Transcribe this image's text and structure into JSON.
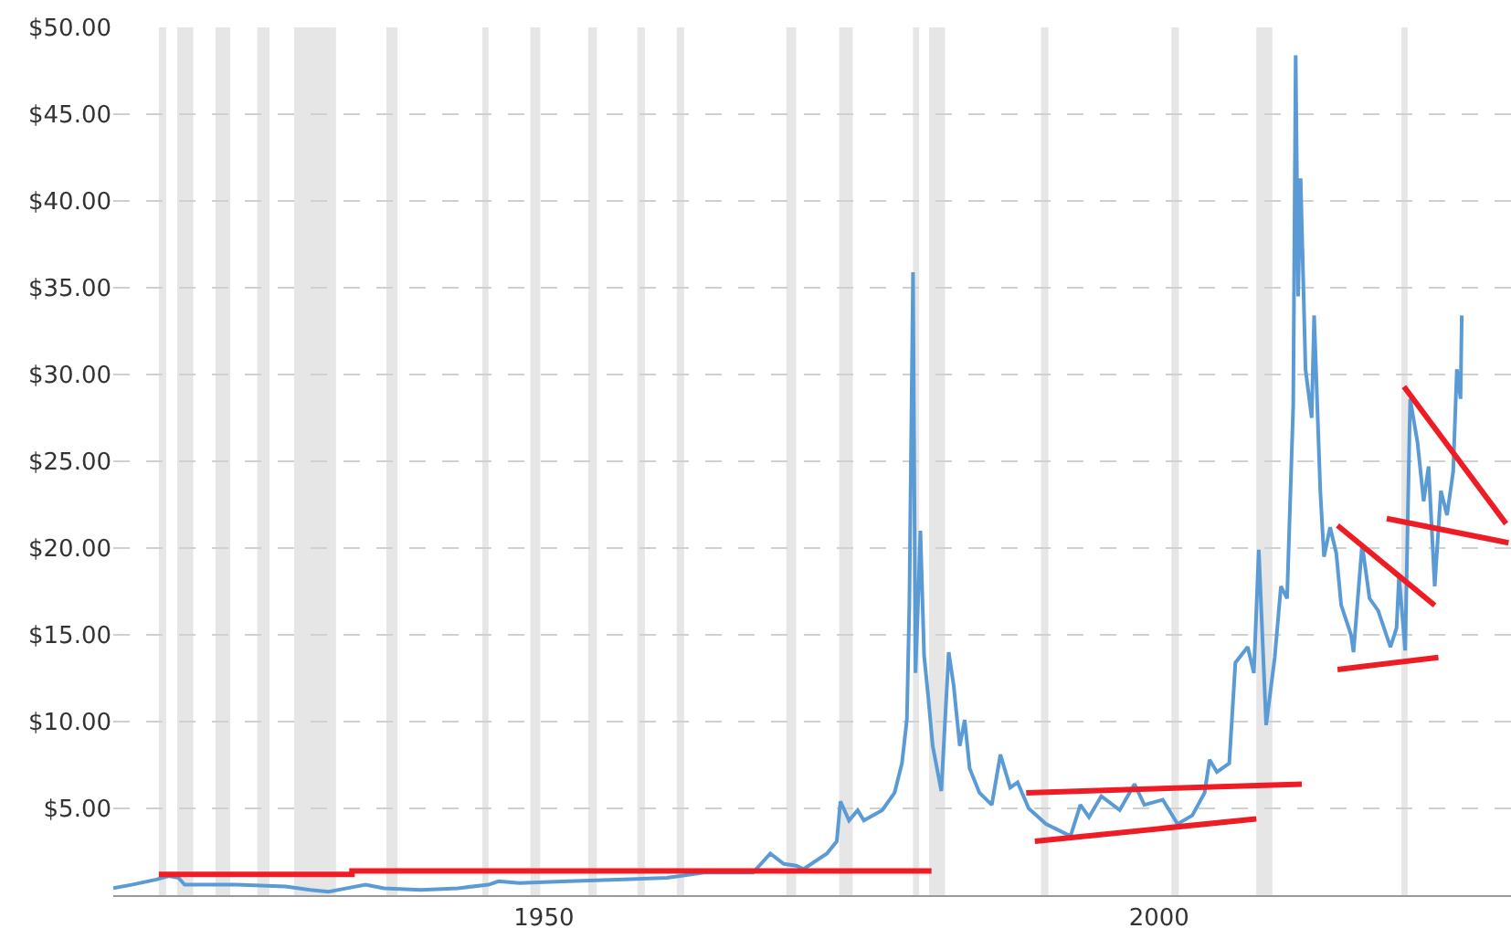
{
  "chart_data": {
    "type": "line",
    "xlim": [
      1915.0,
      2028.6
    ],
    "ylim": [
      0,
      50
    ],
    "xticks": [
      1950,
      2000
    ],
    "yticks": [
      {
        "value": 5,
        "label": "$5.00"
      },
      {
        "value": 10,
        "label": "$10.00"
      },
      {
        "value": 15,
        "label": "$15.00"
      },
      {
        "value": 20,
        "label": "$20.00"
      },
      {
        "value": 25,
        "label": "$25.00"
      },
      {
        "value": 30,
        "label": "$30.00"
      },
      {
        "value": 35,
        "label": "$35.00"
      },
      {
        "value": 40,
        "label": "$40.00"
      },
      {
        "value": 45,
        "label": "$45.00"
      },
      {
        "value": 50,
        "label": "$50.00"
      }
    ],
    "grid": "y",
    "series": [
      {
        "color": "#5b9bd5",
        "x": [
          1915.0,
          1916.5,
          1918.5,
          1919.5,
          1920.3,
          1920.8,
          1925.0,
          1929.0,
          1931.0,
          1932.5,
          1934.0,
          1935.5,
          1937.0,
          1940.0,
          1943.0,
          1945.5,
          1946.3,
          1948.0,
          1952.0,
          1956.0,
          1960.0,
          1963.0,
          1967.0,
          1968.4,
          1969.5,
          1970.5,
          1971.1,
          1973.0,
          1973.8,
          1974.1,
          1974.8,
          1975.5,
          1976.0,
          1977.5,
          1978.5,
          1979.1,
          1979.5,
          1979.7,
          1980.0,
          1980.2,
          1980.4,
          1980.6,
          1980.9,
          1981.2,
          1981.6,
          1982.3,
          1982.9,
          1983.3,
          1983.8,
          1984.2,
          1984.6,
          1985.4,
          1986.4,
          1987.1,
          1987.9,
          1988.5,
          1989.4,
          1990.8,
          1992.8,
          1993.6,
          1994.3,
          1995.3,
          1996.8,
          1998.0,
          1998.8,
          2000.3,
          2001.5,
          2002.7,
          2003.7,
          2004.1,
          2004.7,
          2005.7,
          2006.2,
          2007.2,
          2007.7,
          2008.1,
          2008.7,
          2009.4,
          2009.9,
          2010.4,
          2010.9,
          2011.1,
          2011.3,
          2011.5,
          2011.9,
          2012.4,
          2012.6,
          2013.1,
          2013.4,
          2013.9,
          2014.4,
          2014.8,
          2015.6,
          2015.8,
          2016.5,
          2017.1,
          2017.8,
          2018.8,
          2019.3,
          2019.5,
          2020.0,
          2020.4,
          2021.0,
          2021.5,
          2021.9,
          2022.4,
          2022.9,
          2023.4,
          2023.9,
          2024.2,
          2024.5,
          2024.6
        ],
        "values": [
          0.4,
          0.6,
          0.9,
          1.1,
          1.0,
          0.6,
          0.6,
          0.5,
          0.3,
          0.2,
          0.4,
          0.6,
          0.4,
          0.3,
          0.4,
          0.6,
          0.8,
          0.7,
          0.8,
          0.9,
          1.0,
          1.3,
          1.3,
          2.4,
          1.8,
          1.7,
          1.5,
          2.4,
          3.1,
          5.4,
          4.3,
          4.9,
          4.3,
          4.9,
          5.9,
          7.6,
          10.1,
          16.7,
          35.9,
          12.8,
          16.7,
          21.0,
          13.8,
          11.7,
          8.6,
          6.0,
          14.0,
          12.1,
          8.6,
          10.1,
          7.3,
          5.9,
          5.2,
          8.1,
          6.2,
          6.5,
          5.0,
          4.1,
          3.4,
          5.2,
          4.5,
          5.7,
          4.9,
          6.4,
          5.2,
          5.5,
          4.1,
          4.6,
          5.9,
          7.8,
          7.1,
          7.6,
          13.4,
          14.3,
          12.8,
          19.9,
          9.8,
          13.7,
          17.8,
          17.1,
          28.2,
          48.4,
          34.5,
          41.3,
          30.3,
          27.5,
          33.4,
          23.3,
          19.5,
          21.2,
          19.7,
          16.7,
          15.0,
          14.0,
          20.2,
          17.1,
          16.4,
          14.3,
          15.4,
          18.4,
          14.1,
          28.6,
          26.1,
          22.7,
          24.7,
          17.8,
          23.3,
          21.9,
          24.4,
          30.3,
          28.6,
          33.4
        ]
      },
      {
        "type": "line",
        "color": "#ee1c25",
        "x": [
          1918.7,
          1934.4,
          1934.4,
          1981.5
        ],
        "values": [
          1.2,
          1.2,
          1.4,
          1.4
        ]
      },
      {
        "type": "line",
        "color": "#ee1c25",
        "x": [
          1989.2,
          2011.6
        ],
        "values": [
          5.9,
          6.4
        ]
      },
      {
        "type": "line",
        "color": "#ee1c25",
        "x": [
          1989.9,
          2007.9
        ],
        "values": [
          3.1,
          4.4
        ]
      },
      {
        "type": "line",
        "color": "#ee1c25",
        "x": [
          2014.5,
          2022.4
        ],
        "values": [
          21.3,
          16.7
        ]
      },
      {
        "type": "line",
        "color": "#ee1c25",
        "x": [
          2014.5,
          2022.7
        ],
        "values": [
          13.0,
          13.7
        ]
      },
      {
        "type": "line",
        "color": "#ee1c25",
        "x": [
          2019.9,
          2028.2
        ],
        "values": [
          29.3,
          21.4
        ]
      },
      {
        "type": "line",
        "color": "#ee1c25",
        "x": [
          2018.5,
          2028.4
        ],
        "values": [
          21.7,
          20.3
        ]
      }
    ],
    "bands": [
      {
        "axis": "x",
        "from": 1918.7,
        "to": 1919.3,
        "color": "#e6e6e6"
      },
      {
        "axis": "x",
        "from": 1920.2,
        "to": 1921.5,
        "color": "#e6e6e6"
      },
      {
        "axis": "x",
        "from": 1923.3,
        "to": 1924.5,
        "color": "#e6e6e6"
      },
      {
        "axis": "x",
        "from": 1926.7,
        "to": 1927.7,
        "color": "#e6e6e6"
      },
      {
        "axis": "x",
        "from": 1929.7,
        "to": 1933.1,
        "color": "#e6e6e6"
      },
      {
        "axis": "x",
        "from": 1937.2,
        "to": 1938.1,
        "color": "#e6e6e6"
      },
      {
        "axis": "x",
        "from": 1945.0,
        "to": 1945.5,
        "color": "#e6e6e6"
      },
      {
        "axis": "x",
        "from": 1948.9,
        "to": 1949.7,
        "color": "#e6e6e6"
      },
      {
        "axis": "x",
        "from": 1953.6,
        "to": 1954.3,
        "color": "#e6e6e6"
      },
      {
        "axis": "x",
        "from": 1957.6,
        "to": 1958.2,
        "color": "#e6e6e6"
      },
      {
        "axis": "x",
        "from": 1960.8,
        "to": 1961.4,
        "color": "#e6e6e6"
      },
      {
        "axis": "x",
        "from": 1969.7,
        "to": 1970.5,
        "color": "#e6e6e6"
      },
      {
        "axis": "x",
        "from": 1974.0,
        "to": 1975.1,
        "color": "#e6e6e6"
      },
      {
        "axis": "x",
        "from": 1980.0,
        "to": 1980.5,
        "color": "#e6e6e6"
      },
      {
        "axis": "x",
        "from": 1981.3,
        "to": 1982.6,
        "color": "#e6e6e6"
      },
      {
        "axis": "x",
        "from": 1990.4,
        "to": 1991.0,
        "color": "#e6e6e6"
      },
      {
        "axis": "x",
        "from": 2001.0,
        "to": 2001.6,
        "color": "#e6e6e6"
      },
      {
        "axis": "x",
        "from": 2007.9,
        "to": 2009.2,
        "color": "#e6e6e6"
      },
      {
        "axis": "x",
        "from": 2019.7,
        "to": 2020.2,
        "color": "#e6e6e6"
      }
    ]
  }
}
